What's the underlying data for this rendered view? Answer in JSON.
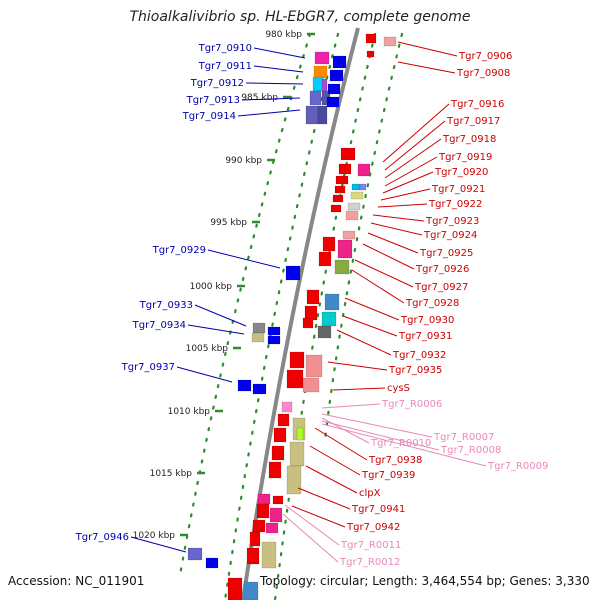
{
  "title": "Thioalkalivibrio sp. HL-EbGR7, complete genome",
  "footer": {
    "accession": "Accession: NC_011901",
    "topology": "Topology: circular; Length: 3,464,554 bp; Genes: 3,330"
  },
  "colors": {
    "left_label": "#0000aa",
    "right_label": "#cc0000",
    "rna_label": "#e888b8",
    "forward_gene": "#0000ee",
    "reverse_gene": "#ee0000",
    "rna_gene": "#ff99cc",
    "backbone": "#888888",
    "ticks": "#2e8b2e"
  },
  "scale_labels": [
    "980 kbp",
    "985 kbp",
    "990 kbp",
    "995 kbp",
    "1000 kbp",
    "1005 kbp",
    "1010 kbp",
    "1015 kbp",
    "1020 kbp"
  ],
  "left_labels": [
    "Tgr7_0910",
    "Tgr7_0911",
    "Tgr7_0912",
    "Tgr7_0913",
    "Tgr7_0914",
    "Tgr7_0929",
    "Tgr7_0933",
    "Tgr7_0934",
    "Tgr7_0937",
    "Tgr7_0946"
  ],
  "right_labels": [
    "Tgr7_0906",
    "Tgr7_0908",
    "Tgr7_0916",
    "Tgr7_0917",
    "Tgr7_0918",
    "Tgr7_0919",
    "Tgr7_0920",
    "Tgr7_0921",
    "Tgr7_0922",
    "Tgr7_0923",
    "Tgr7_0924",
    "Tgr7_0925",
    "Tgr7_0926",
    "Tgr7_0927",
    "Tgr7_0928",
    "Tgr7_0930",
    "Tgr7_0931",
    "Tgr7_0932",
    "Tgr7_0935",
    "cysS",
    "Tgr7_0938",
    "Tgr7_0939",
    "clpX",
    "Tgr7_0941",
    "Tgr7_0942"
  ],
  "rna_labels": [
    "Tgr7_R0006",
    "Tgr7_R0007",
    "Tgr7_R0010",
    "Tgr7_R0008",
    "Tgr7_R0009",
    "Tgr7_R0011",
    "Tgr7_R0012"
  ]
}
